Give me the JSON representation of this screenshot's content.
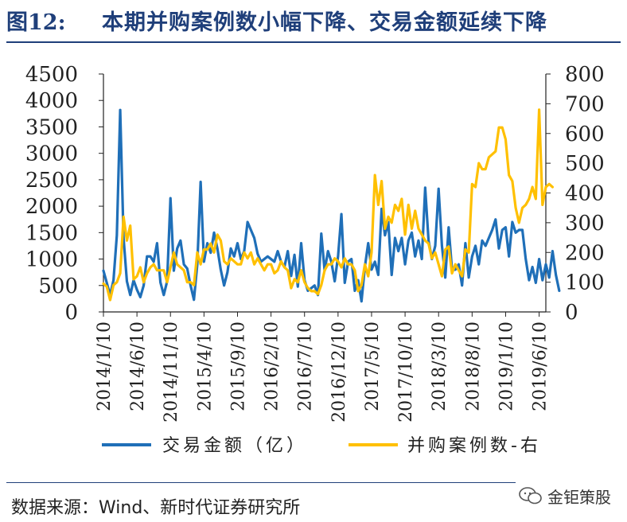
{
  "figure": {
    "number": "图12:",
    "title": "本期并购案例数小幅下降、交易金额延续下降"
  },
  "source": "数据来源：Wind、新时代证券研究所",
  "watermark": {
    "text": "金钜策股",
    "icon": "wechat-icon"
  },
  "colors": {
    "amount": "#1f6fb8",
    "deals": "#ffc000",
    "title": "#1f3f7a",
    "axis": "#222222"
  },
  "chart_data": {
    "type": "line",
    "title": "",
    "x_tick_labels": [
      "2014/1/10",
      "2014/6/10",
      "2014/11/10",
      "2015/4/10",
      "2015/9/10",
      "2016/2/10",
      "2016/7/10",
      "2016/12/10",
      "2017/5/10",
      "2017/10/10",
      "2018/3/10",
      "2018/8/10",
      "2019/1/10",
      "2019/6/10"
    ],
    "x_tick_index": [
      0,
      10,
      20,
      30,
      40,
      50,
      60,
      70,
      80,
      90,
      100,
      110,
      120,
      130
    ],
    "n_points": 133,
    "y_left": {
      "ticks": [
        0,
        500,
        1000,
        1500,
        2000,
        2500,
        3000,
        3500,
        4000,
        4500
      ],
      "lim": [
        0,
        4500
      ]
    },
    "y_right": {
      "ticks": [
        0,
        100,
        200,
        300,
        400,
        500,
        600,
        700,
        800
      ],
      "lim": [
        0,
        800
      ]
    },
    "legend": {
      "position": "bottom"
    },
    "series": [
      {
        "name": "交易金额（亿）",
        "axis": "left",
        "color": "#1f6fb8",
        "values": [
          780,
          550,
          320,
          600,
          1450,
          3820,
          1400,
          580,
          320,
          600,
          420,
          280,
          500,
          1050,
          1050,
          950,
          1300,
          560,
          320,
          580,
          2150,
          780,
          1200,
          1350,
          900,
          820,
          500,
          230,
          900,
          2460,
          950,
          1300,
          1120,
          1500,
          1200,
          800,
          500,
          750,
          1200,
          1050,
          1300,
          1000,
          1150,
          1700,
          1550,
          1400,
          1100,
          950,
          1000,
          1050,
          1000,
          950,
          1150,
          950,
          850,
          1150,
          680,
          1080,
          480,
          1300,
          600,
          400,
          450,
          500,
          320,
          1480,
          780,
          1150,
          950,
          580,
          1050,
          1850,
          550,
          950,
          1000,
          400,
          600,
          200,
          850,
          1300,
          800,
          950,
          700,
          1950,
          1450,
          1700,
          700,
          1400,
          1150,
          1400,
          900,
          1350,
          1500,
          1050,
          1350,
          1000,
          2350,
          1350,
          1000,
          1250,
          2330,
          1250,
          650,
          1600,
          800,
          800,
          900,
          500,
          1300,
          650,
          1050,
          1250,
          900,
          1350,
          1250,
          1400,
          1550,
          1750,
          1200,
          1550,
          1600,
          1050,
          1700,
          1500,
          1550,
          1550,
          1000,
          600,
          850,
          550,
          1000,
          600,
          900,
          650,
          1150,
          700,
          400
        ],
        "values_note": ""
      },
      {
        "name": "并购案例数-右",
        "axis": "right",
        "color": "#ffc000",
        "values": [
          95,
          85,
          40,
          90,
          100,
          130,
          320,
          240,
          290,
          110,
          120,
          150,
          100,
          130,
          150,
          160,
          140,
          140,
          140,
          100,
          150,
          200,
          160,
          150,
          140,
          100,
          100,
          90,
          200,
          160,
          210,
          210,
          230,
          200,
          260,
          240,
          170,
          160,
          180,
          170,
          160,
          160,
          200,
          180,
          200,
          160,
          180,
          160,
          140,
          160,
          160,
          130,
          140,
          170,
          150,
          140,
          80,
          110,
          100,
          140,
          100,
          80,
          70,
          70,
          60,
          90,
          140,
          160,
          160,
          180,
          170,
          150,
          180,
          160,
          160,
          140,
          70,
          90,
          160,
          120,
          200,
          460,
          360,
          440,
          280,
          320,
          300,
          360,
          340,
          380,
          260,
          360,
          280,
          340,
          280,
          260,
          240,
          230,
          180,
          200,
          160,
          120,
          210,
          220,
          130,
          160,
          140,
          120,
          210,
          200,
          430,
          420,
          500,
          480,
          480,
          520,
          530,
          540,
          620,
          620,
          580,
          460,
          440,
          350,
          300,
          350,
          360,
          380,
          420,
          380,
          680,
          360,
          420,
          430,
          420
        ]
      }
    ]
  }
}
